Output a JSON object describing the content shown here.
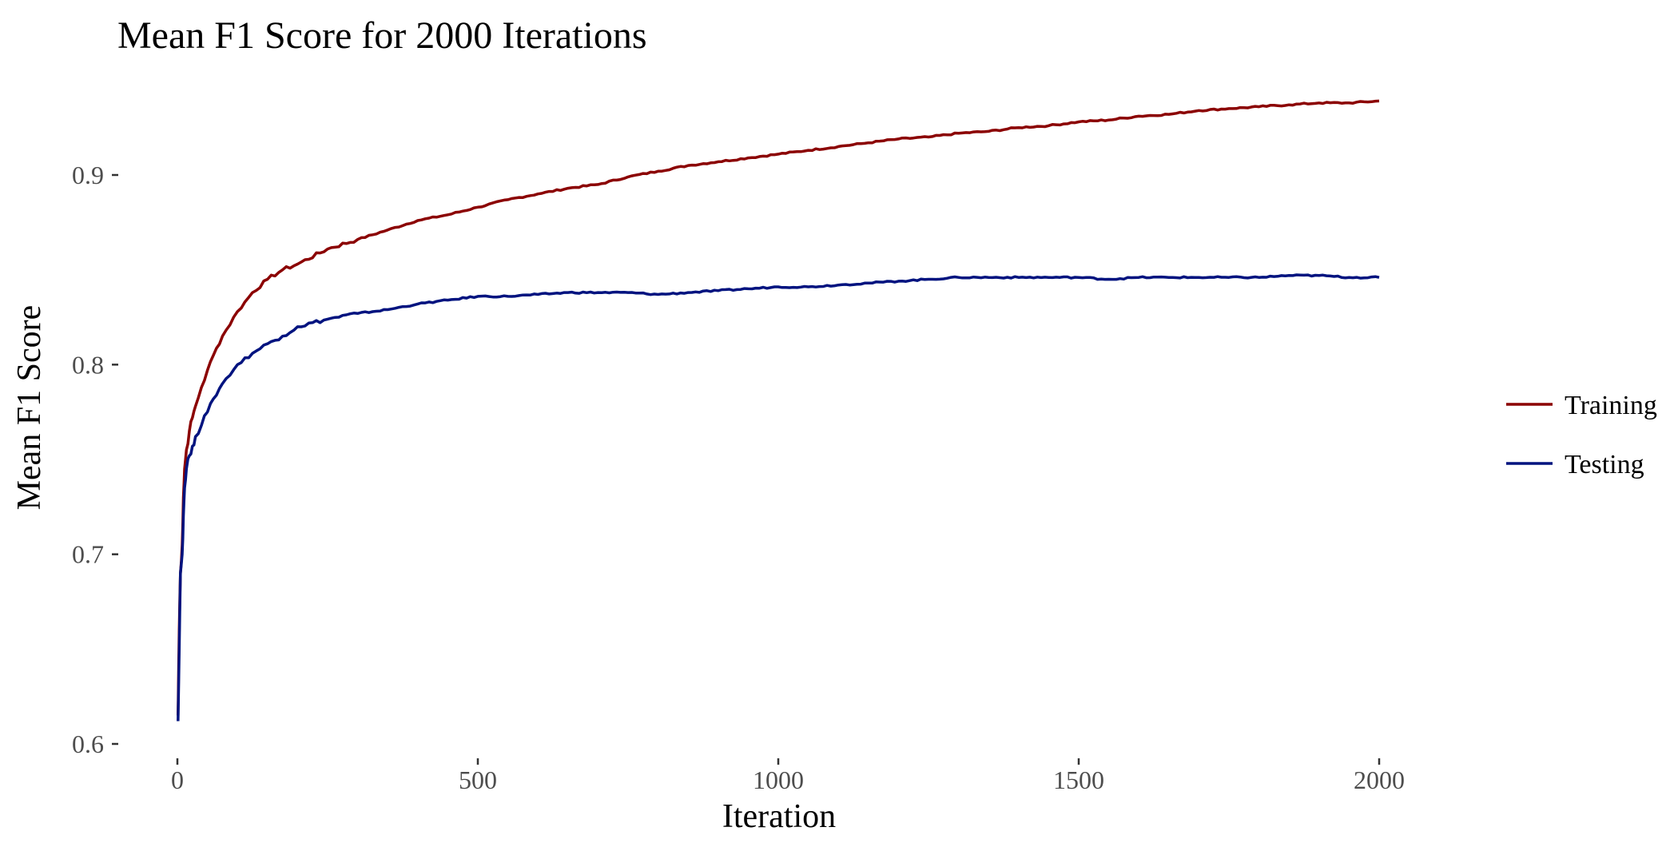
{
  "chart_data": {
    "type": "line",
    "title": "Mean F1 Score for 2000 Iterations",
    "xlabel": "Iteration",
    "ylabel": "Mean F1 Score",
    "xlim": [
      0,
      2000
    ],
    "ylim": [
      0.6,
      0.95
    ],
    "xticks": [
      0,
      500,
      1000,
      1500,
      2000
    ],
    "xtick_labels": [
      "0",
      "500",
      "1000",
      "1500",
      "2000"
    ],
    "yticks": [
      0.6,
      0.7,
      0.8,
      0.9
    ],
    "ytick_labels": [
      "0.6",
      "0.7",
      "0.8",
      "0.9"
    ],
    "grid": false,
    "legend_position": "right",
    "series": [
      {
        "name": "Training",
        "color": "#8B0000",
        "x": [
          1,
          3,
          5,
          8,
          10,
          12,
          15,
          20,
          25,
          30,
          40,
          50,
          60,
          75,
          100,
          125,
          150,
          175,
          200,
          250,
          300,
          350,
          400,
          450,
          500,
          550,
          600,
          650,
          700,
          750,
          800,
          850,
          900,
          950,
          1000,
          1050,
          1100,
          1150,
          1200,
          1250,
          1300,
          1350,
          1400,
          1450,
          1500,
          1550,
          1600,
          1650,
          1700,
          1750,
          1800,
          1850,
          1900,
          1950,
          2000
        ],
        "y": [
          0.615,
          0.66,
          0.69,
          0.705,
          0.73,
          0.745,
          0.755,
          0.765,
          0.772,
          0.778,
          0.788,
          0.797,
          0.805,
          0.815,
          0.828,
          0.838,
          0.845,
          0.85,
          0.853,
          0.861,
          0.866,
          0.871,
          0.876,
          0.879,
          0.883,
          0.887,
          0.89,
          0.893,
          0.895,
          0.899,
          0.902,
          0.905,
          0.907,
          0.909,
          0.911,
          0.913,
          0.915,
          0.917,
          0.919,
          0.92,
          0.922,
          0.923,
          0.925,
          0.926,
          0.928,
          0.929,
          0.931,
          0.932,
          0.934,
          0.935,
          0.936,
          0.937,
          0.938,
          0.938,
          0.939
        ]
      },
      {
        "name": "Testing",
        "color": "#00137F",
        "x": [
          1,
          3,
          5,
          8,
          10,
          12,
          15,
          20,
          25,
          30,
          40,
          50,
          60,
          75,
          100,
          125,
          150,
          175,
          200,
          250,
          300,
          350,
          400,
          450,
          500,
          550,
          600,
          650,
          700,
          750,
          800,
          850,
          900,
          950,
          1000,
          1050,
          1100,
          1150,
          1200,
          1250,
          1300,
          1350,
          1400,
          1450,
          1500,
          1550,
          1600,
          1650,
          1700,
          1750,
          1800,
          1850,
          1900,
          1950,
          2000
        ],
        "y": [
          0.612,
          0.65,
          0.69,
          0.7,
          0.72,
          0.735,
          0.745,
          0.752,
          0.757,
          0.762,
          0.768,
          0.775,
          0.782,
          0.79,
          0.8,
          0.806,
          0.811,
          0.815,
          0.82,
          0.824,
          0.827,
          0.829,
          0.832,
          0.834,
          0.836,
          0.836,
          0.837,
          0.838,
          0.838,
          0.838,
          0.837,
          0.838,
          0.839,
          0.84,
          0.841,
          0.841,
          0.842,
          0.843,
          0.844,
          0.845,
          0.846,
          0.846,
          0.846,
          0.846,
          0.846,
          0.845,
          0.846,
          0.846,
          0.846,
          0.846,
          0.846,
          0.847,
          0.847,
          0.846,
          0.846
        ]
      }
    ]
  }
}
